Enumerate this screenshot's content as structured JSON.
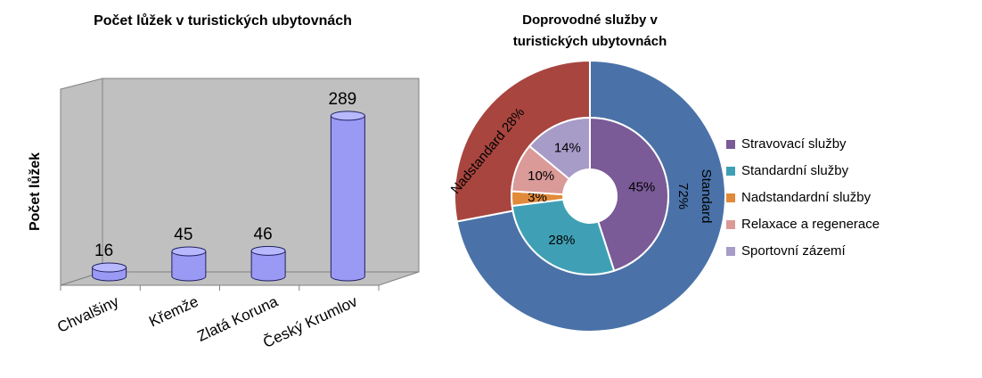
{
  "chart_data": [
    {
      "type": "bar3d",
      "title": "Počet lůžek v turistických ubytovnách",
      "ylabel": "Počet lůžek",
      "categories": [
        "Chvalšiny",
        "Křemže",
        "Zlatá Koruna",
        "Český Krumlov"
      ],
      "values": [
        16,
        45,
        46,
        289
      ],
      "color": "#9a9af5",
      "ylim": [
        0,
        300
      ]
    },
    {
      "type": "donut",
      "title": "Doprovodné služby v turistických ubytovnách",
      "outer": {
        "categories": [
          "Standard",
          "Nadstandard"
        ],
        "values": [
          72,
          28
        ],
        "value_labels": [
          "72%",
          "28%"
        ],
        "colors": [
          "#4a72a8",
          "#a8453f"
        ]
      },
      "series": {
        "categories": [
          "Stravovací služby",
          "Standardní služby",
          "Nadstandardní služby",
          "Relaxace a regenerace",
          "Sportovní zázemí"
        ],
        "values": [
          45,
          28,
          3,
          10,
          14
        ],
        "value_labels": [
          "45%",
          "28%",
          "3%",
          "10%",
          "14%"
        ],
        "colors": [
          "#7a5a97",
          "#3fa0b5",
          "#e08a3a",
          "#d99a98",
          "#a79bc8"
        ]
      },
      "legend": "right"
    }
  ]
}
